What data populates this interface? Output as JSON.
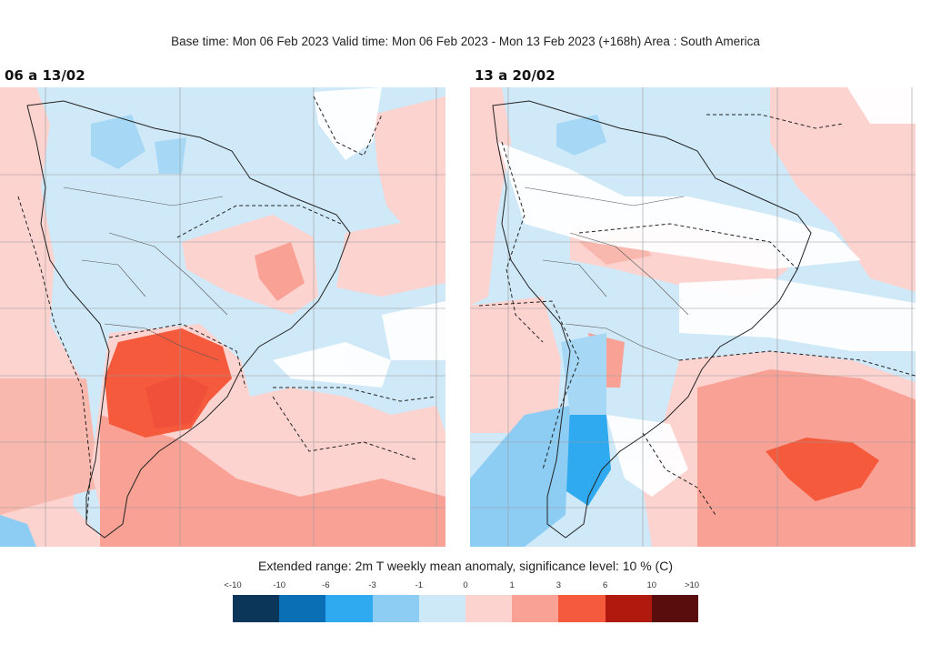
{
  "header": {
    "title": "Base time: Mon 06 Feb 2023 Valid time: Mon 06 Feb 2023 - Mon 13 Feb 2023 (+168h) Area : South America"
  },
  "panels": [
    {
      "label": "06 a 13/02"
    },
    {
      "label": "13 a 20/02"
    }
  ],
  "footer": {
    "caption": "Extended range: 2m T weekly mean anomaly, significance level: 10 % (C)"
  },
  "legend": {
    "ticks": [
      "<-10",
      "-10",
      "-6",
      "-3",
      "-1",
      "0",
      "1",
      "3",
      "6",
      "10",
      ">10"
    ],
    "colors": [
      "#0b3559",
      "#0a6fb4",
      "#2fa9ef",
      "#8dcdf4",
      "#cde9f8",
      "#fdd3cf",
      "#f9a195",
      "#f55a3c",
      "#b01a0e",
      "#5a0d0d"
    ]
  }
}
